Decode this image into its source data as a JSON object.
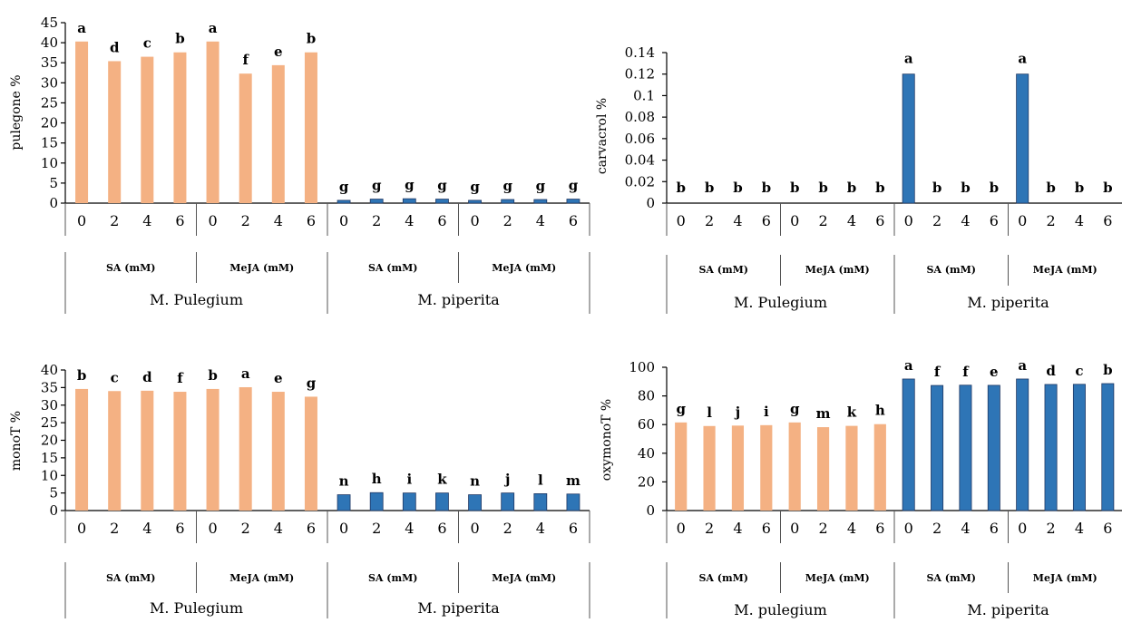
{
  "colors": {
    "pulegium_bar": "#F4B183",
    "piperita_bar": "#2E75B6",
    "bar_edge": "#1F3864"
  },
  "chart_data": [
    {
      "type": "bar",
      "ylabel": "pulegone %",
      "ylim": [
        0,
        45
      ],
      "yticks": [
        "0",
        "5",
        "10",
        "15",
        "20",
        "25",
        "30",
        "35",
        "40",
        "45"
      ],
      "categories": [
        "0",
        "2",
        "4",
        "6",
        "0",
        "2",
        "4",
        "6",
        "0",
        "2",
        "4",
        "6",
        "0",
        "2",
        "4",
        "6"
      ],
      "values": [
        40.3,
        35.4,
        36.5,
        37.6,
        40.3,
        32.3,
        34.4,
        37.6,
        0.7,
        1.0,
        1.1,
        1.0,
        0.7,
        0.9,
        0.9,
        1.0
      ],
      "letters": [
        "a",
        "d",
        "c",
        "b",
        "a",
        "f",
        "e",
        "b",
        "g",
        "g",
        "g",
        "g",
        "g",
        "g",
        "g",
        "g"
      ],
      "treatments": [
        "SA (mM)",
        "MeJA (mM)",
        "SA (mM)",
        "MeJA (mM)"
      ],
      "species": [
        "M. Pulegium",
        "M. piperita"
      ]
    },
    {
      "type": "bar",
      "ylabel": "carvacrol %",
      "ylim": [
        0,
        0.14
      ],
      "yticks": [
        "0",
        "0.02",
        "0.04",
        "0.06",
        "0.08",
        "0.1",
        "0.12",
        "0.14"
      ],
      "categories": [
        "0",
        "2",
        "4",
        "6",
        "0",
        "2",
        "4",
        "6",
        "0",
        "2",
        "4",
        "6",
        "0",
        "2",
        "4",
        "6"
      ],
      "values": [
        0,
        0,
        0,
        0,
        0,
        0,
        0,
        0,
        0.12,
        0,
        0,
        0,
        0.12,
        0,
        0,
        0
      ],
      "letters": [
        "b",
        "b",
        "b",
        "b",
        "b",
        "b",
        "b",
        "b",
        "a",
        "b",
        "b",
        "b",
        "a",
        "b",
        "b",
        "b"
      ],
      "treatments": [
        "SA (mM)",
        "MeJA (mM)",
        "SA (mM)",
        "MeJA (mM)"
      ],
      "species": [
        "M. Pulegium",
        "M. piperita"
      ]
    },
    {
      "type": "bar",
      "ylabel": "monoT %",
      "ylim": [
        0,
        40
      ],
      "yticks": [
        "0",
        "5",
        "10",
        "15",
        "20",
        "25",
        "30",
        "35",
        "40"
      ],
      "categories": [
        "0",
        "2",
        "4",
        "6",
        "0",
        "2",
        "4",
        "6",
        "0",
        "2",
        "4",
        "6",
        "0",
        "2",
        "4",
        "6"
      ],
      "values": [
        34.6,
        34.0,
        34.1,
        33.8,
        34.6,
        35.1,
        33.8,
        32.4,
        4.5,
        5.1,
        5.0,
        5.0,
        4.5,
        5.0,
        4.8,
        4.7
      ],
      "letters": [
        "b",
        "c",
        "d",
        "f",
        "b",
        "a",
        "e",
        "g",
        "n",
        "h",
        "i",
        "k",
        "n",
        "j",
        "l",
        "m"
      ],
      "treatments": [
        "SA (mM)",
        "MeJA (mM)",
        "SA (mM)",
        "MeJA (mM)"
      ],
      "species": [
        "M. Pulegium",
        "M. piperita"
      ]
    },
    {
      "type": "bar",
      "ylabel": "oxymonoT %",
      "ylim": [
        0,
        100
      ],
      "yticks": [
        "0",
        "20",
        "40",
        "60",
        "80",
        "100"
      ],
      "categories": [
        "0",
        "2",
        "4",
        "6",
        "0",
        "2",
        "4",
        "6",
        "0",
        "2",
        "4",
        "6",
        "0",
        "2",
        "4",
        "6"
      ],
      "values": [
        61.5,
        59.0,
        59.3,
        59.6,
        61.5,
        58.2,
        59.1,
        60.3,
        91.8,
        87.3,
        87.5,
        87.4,
        91.8,
        88.0,
        88.1,
        88.6
      ],
      "letters": [
        "g",
        "l",
        "j",
        "i",
        "g",
        "m",
        "k",
        "h",
        "a",
        "f",
        "f",
        "e",
        "a",
        "d",
        "c",
        "b"
      ],
      "treatments": [
        "SA (mM)",
        "MeJA (mM)",
        "SA (mM)",
        "MeJA (mM)"
      ],
      "species": [
        "M. pulegium",
        "M. piperita"
      ]
    }
  ]
}
